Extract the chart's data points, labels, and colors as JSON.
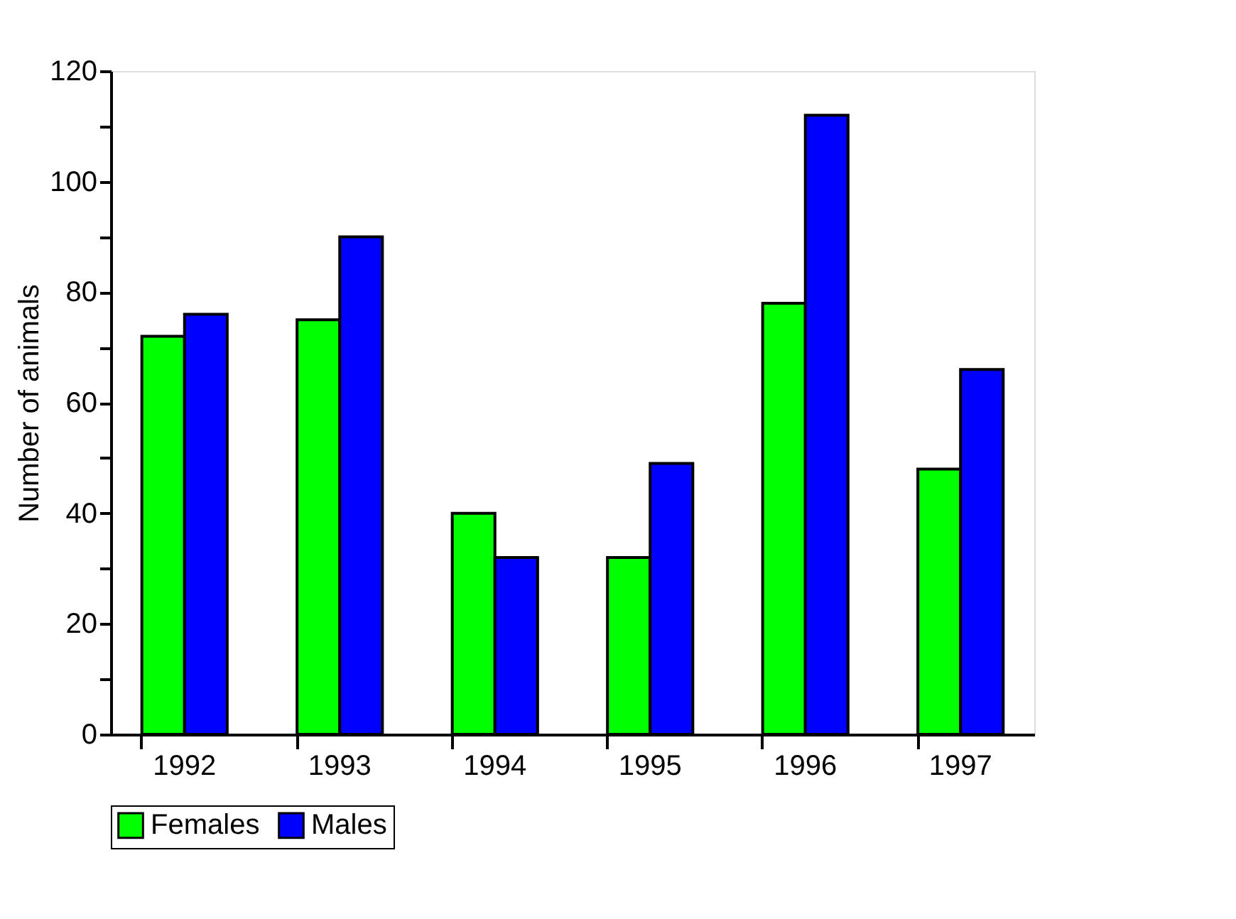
{
  "chart_data": {
    "type": "bar",
    "ylabel": "Number of animals",
    "categories": [
      "1992",
      "1993",
      "1994",
      "1995",
      "1996",
      "1997"
    ],
    "series": [
      {
        "name": "Females",
        "color": "#00ff00",
        "values": [
          72,
          75,
          40,
          32,
          78,
          48
        ]
      },
      {
        "name": "Males",
        "color": "#0000ff",
        "values": [
          76,
          90,
          32,
          49,
          112,
          66
        ]
      }
    ],
    "ylim": [
      0,
      120
    ],
    "yticks": [
      0,
      {
        "value": 10,
        "label": null
      },
      20,
      {
        "value": 30,
        "label": null
      },
      40,
      {
        "value": 50,
        "label": null
      },
      60,
      {
        "value": 70,
        "label": null
      },
      80,
      {
        "value": 90,
        "label": null
      },
      100,
      {
        "value": 110,
        "label": null
      },
      120
    ],
    "grid": false,
    "legend": "bottom"
  }
}
